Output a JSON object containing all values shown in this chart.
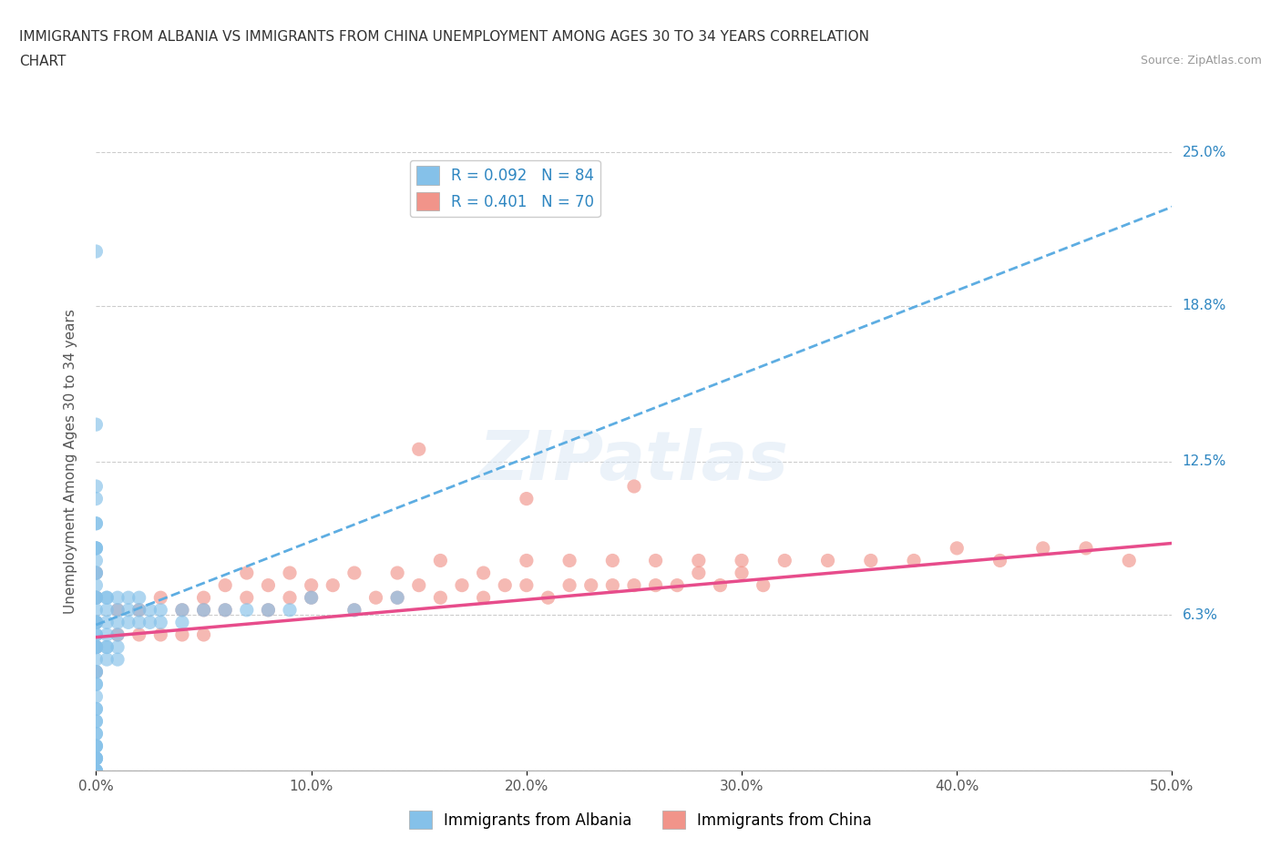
{
  "title_line1": "IMMIGRANTS FROM ALBANIA VS IMMIGRANTS FROM CHINA UNEMPLOYMENT AMONG AGES 30 TO 34 YEARS CORRELATION",
  "title_line2": "CHART",
  "source": "Source: ZipAtlas.com",
  "ylabel": "Unemployment Among Ages 30 to 34 years",
  "xlim": [
    0.0,
    0.5
  ],
  "ylim": [
    0.0,
    0.25
  ],
  "ytick_vals": [
    0.0,
    0.063,
    0.125,
    0.188,
    0.25
  ],
  "ytick_labels": [
    "",
    "6.3%",
    "12.5%",
    "18.8%",
    "25.0%"
  ],
  "xticks": [
    0.0,
    0.1,
    0.2,
    0.3,
    0.4,
    0.5
  ],
  "xtick_labels": [
    "0.0%",
    "10.0%",
    "20.0%",
    "30.0%",
    "40.0%",
    "50.0%"
  ],
  "legend_R_albania": "R = 0.092",
  "legend_N_albania": "N = 84",
  "legend_R_china": "R = 0.401",
  "legend_N_china": "N = 70",
  "color_albania": "#85C1E9",
  "color_china": "#F1948A",
  "color_trendline_albania": "#5DADE2",
  "color_trendline_china": "#E74C8B",
  "blue_label_color": "#2E86C1",
  "albania_trendline": [
    0.0,
    0.059,
    0.5,
    0.228
  ],
  "china_trendline": [
    0.0,
    0.054,
    0.5,
    0.092
  ],
  "albania_x": [
    0.0,
    0.0,
    0.0,
    0.0,
    0.0,
    0.0,
    0.0,
    0.0,
    0.0,
    0.0,
    0.0,
    0.0,
    0.0,
    0.0,
    0.0,
    0.0,
    0.0,
    0.0,
    0.0,
    0.0,
    0.0,
    0.0,
    0.0,
    0.0,
    0.0,
    0.0,
    0.0,
    0.0,
    0.0,
    0.0,
    0.0,
    0.0,
    0.0,
    0.0,
    0.0,
    0.0,
    0.0,
    0.0,
    0.0,
    0.0,
    0.005,
    0.005,
    0.005,
    0.005,
    0.005,
    0.005,
    0.005,
    0.005,
    0.01,
    0.01,
    0.01,
    0.01,
    0.01,
    0.01,
    0.015,
    0.015,
    0.015,
    0.02,
    0.02,
    0.02,
    0.025,
    0.025,
    0.03,
    0.03,
    0.04,
    0.04,
    0.05,
    0.06,
    0.07,
    0.08,
    0.09,
    0.1,
    0.12,
    0.14,
    0.0,
    0.0,
    0.0,
    0.0,
    0.0,
    0.0,
    0.0,
    0.0,
    0.0,
    0.0
  ],
  "albania_y": [
    0.21,
    0.14,
    0.115,
    0.11,
    0.1,
    0.1,
    0.09,
    0.09,
    0.09,
    0.085,
    0.08,
    0.08,
    0.075,
    0.07,
    0.07,
    0.07,
    0.065,
    0.06,
    0.06,
    0.06,
    0.06,
    0.055,
    0.055,
    0.05,
    0.05,
    0.05,
    0.05,
    0.045,
    0.04,
    0.04,
    0.035,
    0.035,
    0.03,
    0.025,
    0.02,
    0.015,
    0.01,
    0.005,
    0.005,
    0.0,
    0.07,
    0.07,
    0.065,
    0.06,
    0.055,
    0.05,
    0.05,
    0.045,
    0.07,
    0.065,
    0.06,
    0.055,
    0.05,
    0.045,
    0.07,
    0.065,
    0.06,
    0.07,
    0.065,
    0.06,
    0.065,
    0.06,
    0.065,
    0.06,
    0.065,
    0.06,
    0.065,
    0.065,
    0.065,
    0.065,
    0.065,
    0.07,
    0.065,
    0.07,
    0.0,
    0.0,
    0.0,
    0.005,
    0.005,
    0.01,
    0.01,
    0.015,
    0.02,
    0.025
  ],
  "china_x": [
    0.0,
    0.0,
    0.0,
    0.0,
    0.0,
    0.0,
    0.01,
    0.01,
    0.02,
    0.02,
    0.03,
    0.03,
    0.04,
    0.04,
    0.05,
    0.05,
    0.06,
    0.07,
    0.08,
    0.09,
    0.1,
    0.11,
    0.12,
    0.13,
    0.14,
    0.15,
    0.16,
    0.17,
    0.18,
    0.19,
    0.2,
    0.21,
    0.22,
    0.23,
    0.24,
    0.25,
    0.26,
    0.27,
    0.28,
    0.29,
    0.3,
    0.31,
    0.05,
    0.06,
    0.07,
    0.08,
    0.09,
    0.1,
    0.12,
    0.14,
    0.16,
    0.18,
    0.2,
    0.22,
    0.24,
    0.26,
    0.28,
    0.3,
    0.32,
    0.34,
    0.36,
    0.38,
    0.4,
    0.42,
    0.44,
    0.46,
    0.48,
    0.15,
    0.2,
    0.25
  ],
  "china_y": [
    0.08,
    0.07,
    0.06,
    0.05,
    0.05,
    0.04,
    0.065,
    0.055,
    0.065,
    0.055,
    0.07,
    0.055,
    0.065,
    0.055,
    0.065,
    0.055,
    0.065,
    0.07,
    0.065,
    0.07,
    0.07,
    0.075,
    0.065,
    0.07,
    0.07,
    0.075,
    0.07,
    0.075,
    0.07,
    0.075,
    0.075,
    0.07,
    0.075,
    0.075,
    0.075,
    0.075,
    0.075,
    0.075,
    0.08,
    0.075,
    0.08,
    0.075,
    0.07,
    0.075,
    0.08,
    0.075,
    0.08,
    0.075,
    0.08,
    0.08,
    0.085,
    0.08,
    0.085,
    0.085,
    0.085,
    0.085,
    0.085,
    0.085,
    0.085,
    0.085,
    0.085,
    0.085,
    0.09,
    0.085,
    0.09,
    0.09,
    0.085,
    0.13,
    0.11,
    0.115
  ]
}
